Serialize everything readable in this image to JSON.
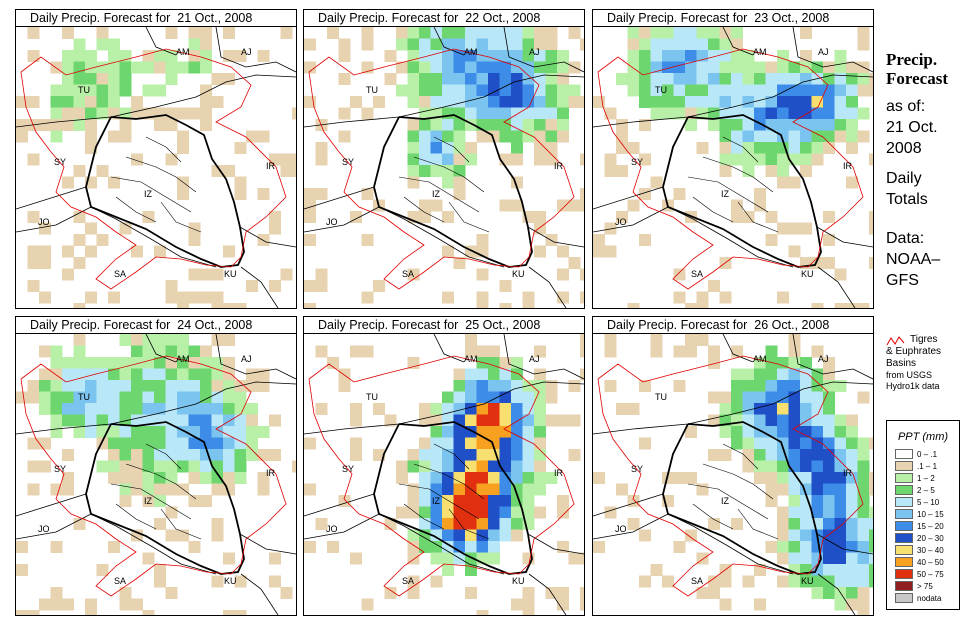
{
  "title_prefix": "Daily Precip. Forecast for",
  "panels": [
    {
      "date": "21 Oct., 2008",
      "intensity": 0.15,
      "blobs": [
        [
          0.35,
          0.18,
          0.25
        ],
        [
          0.6,
          0.12,
          0.2
        ],
        [
          0.15,
          0.28,
          0.15
        ],
        [
          0.25,
          0.15,
          0.18
        ]
      ]
    },
    {
      "date": "22 Oct., 2008",
      "intensity": 0.55,
      "blobs": [
        [
          0.55,
          0.1,
          0.3
        ],
        [
          0.75,
          0.22,
          0.25
        ],
        [
          0.45,
          0.42,
          0.15
        ]
      ]
    },
    {
      "date": "23 Oct., 2008",
      "intensity": 0.6,
      "blobs": [
        [
          0.3,
          0.12,
          0.25
        ],
        [
          0.6,
          0.3,
          0.25
        ],
        [
          0.8,
          0.25,
          0.2
        ]
      ]
    },
    {
      "date": "24 Oct., 2008",
      "intensity": 0.45,
      "blobs": [
        [
          0.5,
          0.25,
          0.35
        ],
        [
          0.2,
          0.2,
          0.2
        ],
        [
          0.7,
          0.35,
          0.2
        ]
      ]
    },
    {
      "date": "25 Oct., 2008",
      "intensity": 0.85,
      "blobs": [
        [
          0.6,
          0.48,
          0.28
        ],
        [
          0.65,
          0.25,
          0.22
        ],
        [
          0.55,
          0.65,
          0.2
        ]
      ]
    },
    {
      "date": "26 Oct., 2008",
      "intensity": 0.75,
      "blobs": [
        [
          0.85,
          0.72,
          0.25
        ],
        [
          0.65,
          0.25,
          0.25
        ],
        [
          0.8,
          0.45,
          0.2
        ]
      ]
    }
  ],
  "country_labels": [
    "AM",
    "AJ",
    "TU",
    "SY",
    "IR",
    "IZ",
    "JO",
    "SA",
    "KU"
  ],
  "side": {
    "title1": "Precip.",
    "title2": "Forecast",
    "asof": "as of:",
    "date1": "21 Oct.",
    "date2": "2008",
    "daily1": "Daily",
    "daily2": "Totals",
    "data1": "Data:",
    "data2": "NOAA–",
    "data3": "GFS"
  },
  "basin": {
    "line1": "Tigres",
    "line2": "& Euphrates",
    "line3": "Basins",
    "line4": "from USGS",
    "line5": "Hydro1k data"
  },
  "legend": {
    "title": "PPT (mm)",
    "items": [
      {
        "label": "0 – .1",
        "color": "#ffffff"
      },
      {
        "label": ".1 – 1",
        "color": "#e8d3b0"
      },
      {
        "label": "1 – 2",
        "color": "#b8f0a8"
      },
      {
        "label": "2 – 5",
        "color": "#6ed66e"
      },
      {
        "label": "5 – 10",
        "color": "#b8e8f8"
      },
      {
        "label": "10 – 15",
        "color": "#7cc4f0"
      },
      {
        "label": "15 – 20",
        "color": "#3c8ce8"
      },
      {
        "label": "20 – 30",
        "color": "#2050c8"
      },
      {
        "label": "30 – 40",
        "color": "#f8e070"
      },
      {
        "label": "40 – 50",
        "color": "#f8a020"
      },
      {
        "label": "50 – 75",
        "color": "#e03010"
      },
      {
        "label": "> 75",
        "color": "#902020"
      },
      {
        "label": "nodata",
        "color": "#c8c8c8"
      }
    ]
  }
}
